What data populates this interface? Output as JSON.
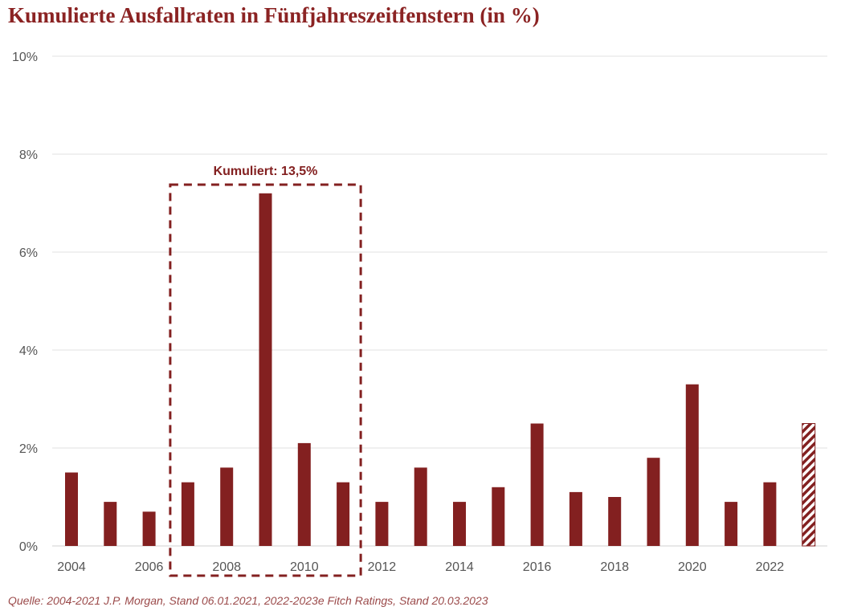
{
  "title": "Kumulierte Ausfallraten in Fünfjahreszeitfenstern (in %)",
  "source": "Quelle: 2004-2021 J.P. Morgan, Stand 06.01.2021, 2022-2023e Fitch Ratings, Stand 20.03.2023",
  "chart_data": {
    "type": "bar",
    "title": "Kumulierte Ausfallraten in Fünfjahreszeitfenstern (in %)",
    "categories": [
      "2004",
      "2005",
      "2006",
      "2007",
      "2008",
      "2009",
      "2010",
      "2011",
      "2012",
      "2013",
      "2014",
      "2015",
      "2016",
      "2017",
      "2018",
      "2019",
      "2020",
      "2021",
      "2022",
      "2023"
    ],
    "x_tick_labels": [
      "2004",
      "2006",
      "2008",
      "2010",
      "2012",
      "2014",
      "2016",
      "2018",
      "2020",
      "2022"
    ],
    "values": [
      1.5,
      0.9,
      0.7,
      1.3,
      1.6,
      7.2,
      2.1,
      1.3,
      0.9,
      1.6,
      0.9,
      1.2,
      2.5,
      1.1,
      1.0,
      1.8,
      3.3,
      0.9,
      1.3,
      2.5
    ],
    "hatched_categories": [
      "2023"
    ],
    "ylim": [
      0,
      10
    ],
    "y_ticks": [
      0,
      2,
      4,
      6,
      8,
      10
    ],
    "y_tick_format": "%",
    "grid": true,
    "bar_color": "#832020",
    "annotation": {
      "text": "Kumuliert: 13,5%",
      "range": [
        "2007",
        "2011"
      ],
      "style": "dashed box"
    }
  }
}
